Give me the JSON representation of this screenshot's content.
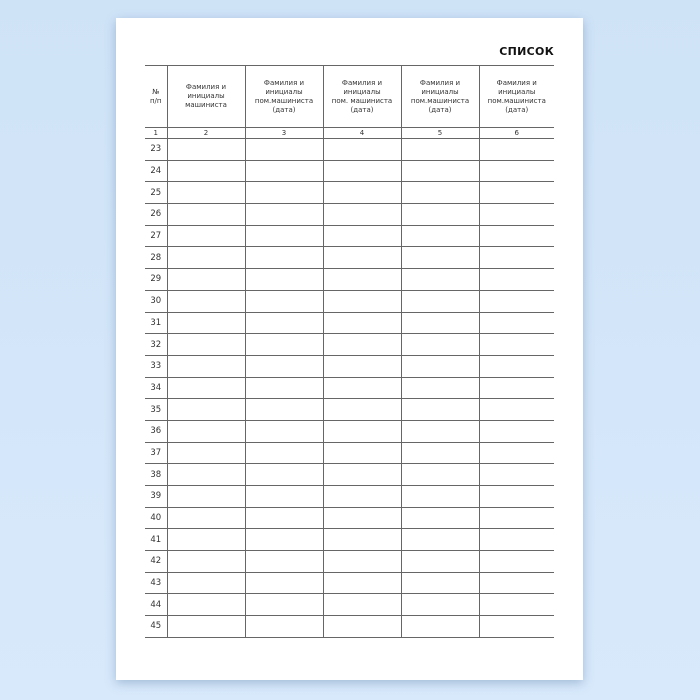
{
  "title": "СПИСОК",
  "table": {
    "headers": [
      "№\nп/п",
      "Фамилия и\nинициалы\nмашиниста",
      "Фамилия и\nинициалы\nпом.машиниста\n(дата)",
      "Фамилия и\nинициалы\nпом. машиниста\n(дата)",
      "Фамилия и\nинициалы\nпом.машиниста\n(дата)",
      "Фамилия и\nинициалы\nпом.машиниста\n(дата)"
    ],
    "column_numbers": [
      "1",
      "2",
      "3",
      "4",
      "5",
      "6"
    ],
    "row_numbers": [
      "23",
      "24",
      "25",
      "26",
      "27",
      "28",
      "29",
      "30",
      "31",
      "32",
      "33",
      "34",
      "35",
      "36",
      "37",
      "38",
      "39",
      "40",
      "41",
      "42",
      "43",
      "44",
      "45"
    ]
  }
}
